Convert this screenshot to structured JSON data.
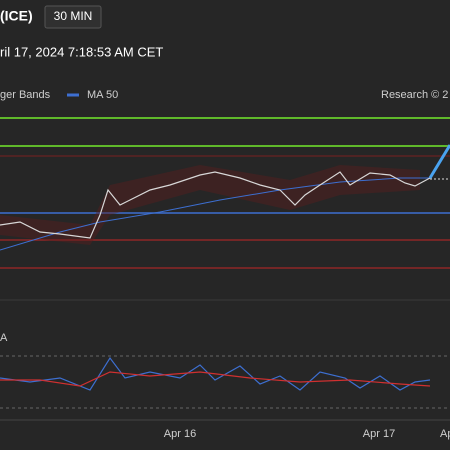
{
  "header": {
    "symbol": "(ICE)",
    "interval": "30 MIN",
    "timestamp": "ril 17, 2024 7:18:53 AM CET"
  },
  "legend": {
    "bands": "ger Bands",
    "ma": "MA 50",
    "source": "Research © 2"
  },
  "oscillator": {
    "label": "A"
  },
  "x_axis": {
    "labels": [
      "Apr 16",
      "Apr 17",
      "Ap"
    ]
  }
}
